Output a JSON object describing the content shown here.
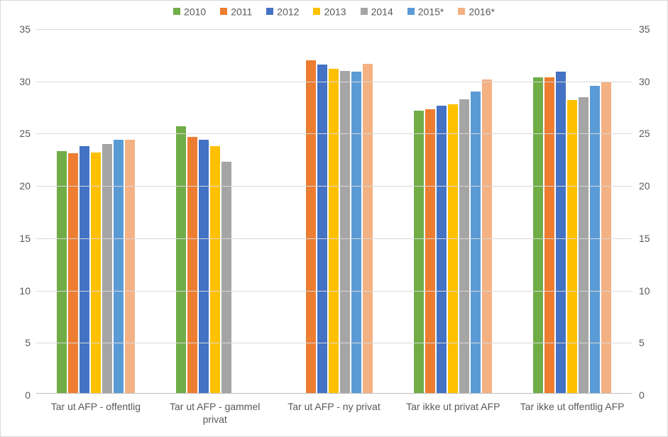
{
  "chart": {
    "type": "bar",
    "background_color": "#ffffff",
    "border_color": "#d9d9d9",
    "grid_color": "#d9d9d9",
    "axis_text_color": "#595959",
    "label_fontsize": 14,
    "ylim": [
      0,
      35
    ],
    "ytick_step": 5,
    "series": [
      {
        "name": "2010",
        "color": "#70ad47"
      },
      {
        "name": "2011",
        "color": "#ed7d31"
      },
      {
        "name": "2012",
        "color": "#4472c4"
      },
      {
        "name": "2013",
        "color": "#ffc000"
      },
      {
        "name": "2014",
        "color": "#a5a5a5"
      },
      {
        "name": "2015*",
        "color": "#5b9bd5"
      },
      {
        "name": "2016*",
        "color": "#f4b183"
      }
    ],
    "categories": [
      {
        "label": "Tar ut AFP - offentlig",
        "values": [
          23.1,
          22.9,
          23.6,
          23.0,
          23.8,
          24.2,
          24.2
        ]
      },
      {
        "label": "Tar ut AFP - gammel privat",
        "values": [
          25.5,
          24.5,
          24.2,
          23.6,
          22.1,
          null,
          null
        ]
      },
      {
        "label": "Tar ut AFP - ny privat",
        "values": [
          null,
          31.8,
          31.4,
          31.0,
          30.8,
          30.7,
          31.5
        ]
      },
      {
        "label": "Tar ikke ut privat AFP",
        "values": [
          27.0,
          27.1,
          27.5,
          27.6,
          28.1,
          28.8,
          30.0
        ]
      },
      {
        "label": "Tar ikke ut offentlig AFP",
        "values": [
          30.2,
          30.2,
          30.7,
          28.0,
          28.3,
          29.4,
          29.7
        ]
      }
    ]
  }
}
